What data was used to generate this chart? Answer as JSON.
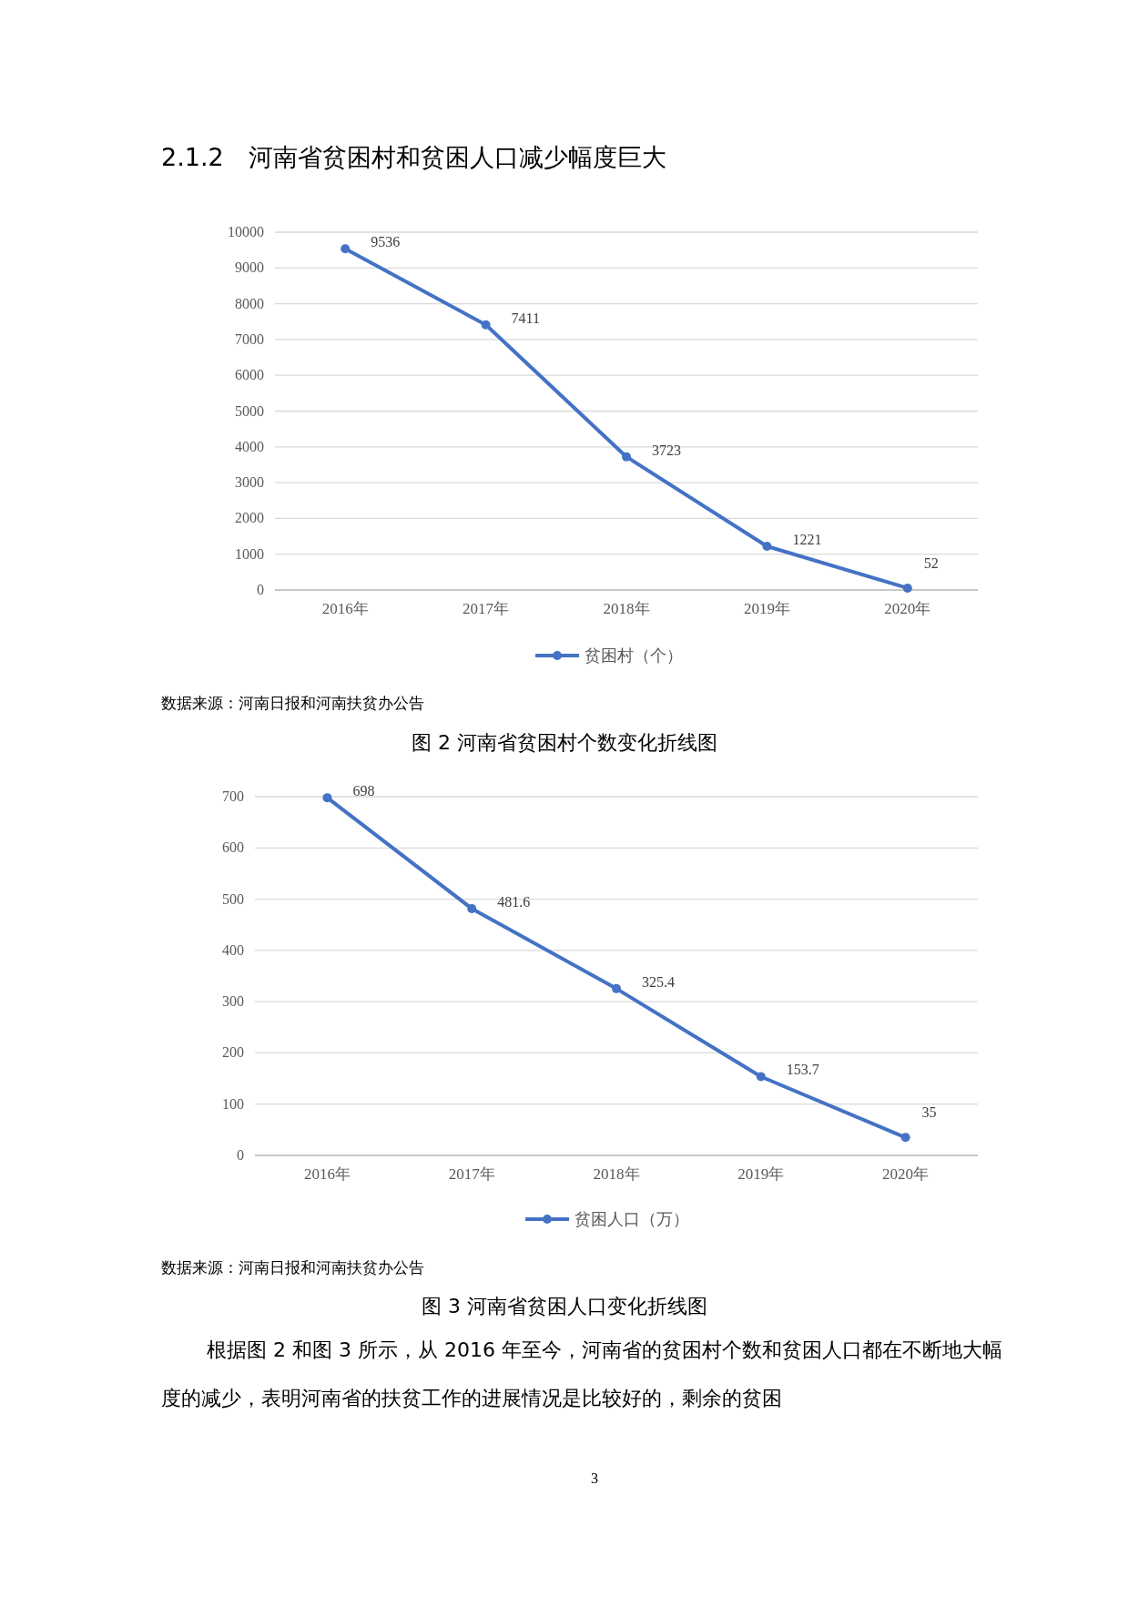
{
  "chart_data": [
    {
      "type": "line",
      "title": "2.1.2　河南省贫困村和贫困人口减少幅度巨大",
      "categories": [
        "2016年",
        "2017年",
        "2018年",
        "2019年",
        "2020年"
      ],
      "series": [
        {
          "name": "贫困村（个）",
          "color": "#4472c4",
          "values": [
            9536,
            7411,
            3723,
            1221,
            52
          ]
        }
      ],
      "ylim": [
        0,
        10000
      ],
      "yticks": [
        0,
        1000,
        2000,
        3000,
        4000,
        5000,
        6000,
        7000,
        8000,
        9000,
        10000
      ],
      "grid": "y",
      "legend": "bottom",
      "marker": "circle",
      "data_labels": true,
      "annotations": [
        "数据来源：河南日报和河南扶贫办公告",
        "图 2 河南省贫困村个数变化折线图"
      ]
    },
    {
      "type": "line",
      "categories": [
        "2016年",
        "2017年",
        "2018年",
        "2019年",
        "2020年"
      ],
      "series": [
        {
          "name": "贫困人口（万）",
          "color": "#4472c4",
          "values": [
            698,
            481.6,
            325.4,
            153.7,
            35
          ]
        }
      ],
      "ylim": [
        0,
        700
      ],
      "yticks": [
        0,
        100,
        200,
        300,
        400,
        500,
        600,
        700
      ],
      "grid": "y",
      "legend": "bottom",
      "marker": "circle",
      "data_labels": true,
      "annotations": [
        "数据来源：河南日报和河南扶贫办公告",
        "图 3 河南省贫困人口变化折线图",
        "根据图 2 和图 3 所示，从 2016 年至今，河南省的贫困村个数和贫困人口都在不断地大幅度的减少，表明河南省的扶贫工作的进展情况是比较好的，剩余的贫困",
        "3"
      ]
    }
  ]
}
